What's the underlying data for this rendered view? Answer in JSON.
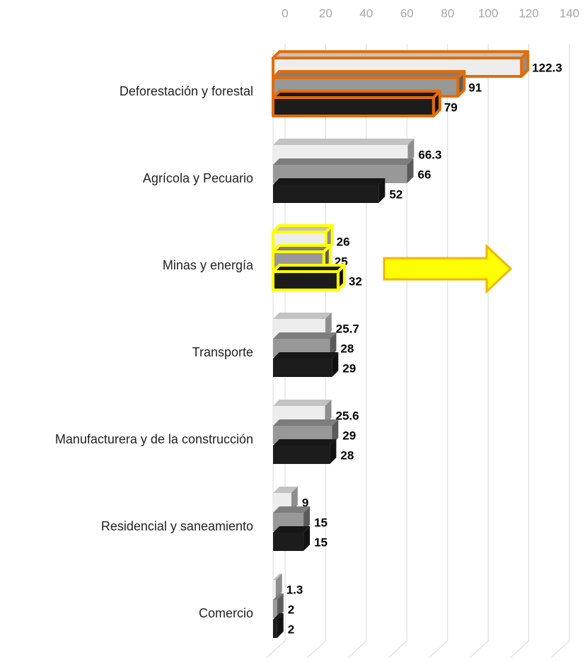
{
  "chart_data": {
    "type": "bar3d_horizontal",
    "categories": [
      "Deforestación y forestal",
      "Agrícola y Pecuario",
      "Minas y energía",
      "Transporte",
      "Manufacturera y de la construcción",
      "Residencial y saneamiento",
      "Comercio"
    ],
    "series": [
      {
        "color": "#ededed",
        "values": [
          122.3,
          66.3,
          26,
          25.7,
          25.6,
          9,
          1.3
        ]
      },
      {
        "color": "#989898",
        "values": [
          91,
          66,
          25,
          28,
          29,
          15,
          2
        ]
      },
      {
        "color": "#1c1c1c",
        "values": [
          79,
          52,
          32,
          29,
          28,
          15,
          2
        ]
      }
    ],
    "xlim": [
      0,
      140
    ],
    "xticks": [
      0,
      20,
      40,
      60,
      80,
      100,
      120,
      140
    ],
    "grid": true,
    "outline_colors": [
      "#e36c0a",
      null,
      "#ffff00",
      null,
      null,
      null,
      null
    ]
  }
}
